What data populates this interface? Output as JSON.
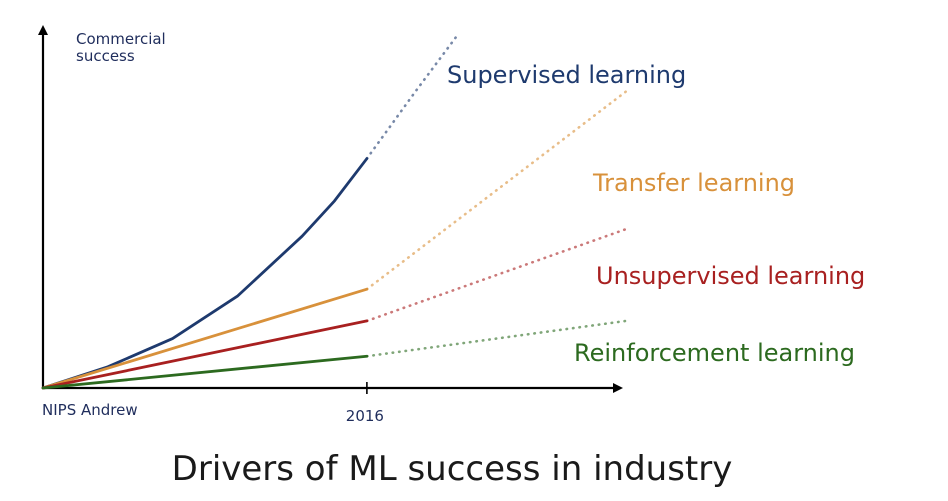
{
  "chart_data": {
    "type": "line",
    "title": "Drivers of ML success in industry",
    "ylabel_lines": [
      "Commercial",
      "success"
    ],
    "xlabel_start": "NIPS Andrew",
    "x_ticks": [
      {
        "x": 2016,
        "label": "2016"
      }
    ],
    "xlim": [
      2011,
      2020
    ],
    "ylim": [
      0,
      10
    ],
    "split_x": 2016,
    "series": [
      {
        "name": "Supervised learning",
        "color": "#1e3a6e",
        "x": [
          2011,
          2012,
          2013,
          2014,
          2015,
          2015.5,
          2016,
          2016.75,
          2017.4
        ],
        "values": [
          0,
          0.6,
          1.4,
          2.6,
          4.3,
          5.3,
          6.5,
          8.4,
          10
        ]
      },
      {
        "name": "Transfer learning",
        "color": "#d8913b",
        "x": [
          2011,
          2016,
          2020
        ],
        "values": [
          0,
          2.8,
          8.4
        ]
      },
      {
        "name": "Unsupervised learning",
        "color": "#a82020",
        "x": [
          2011,
          2016,
          2020
        ],
        "values": [
          0,
          1.9,
          4.5
        ]
      },
      {
        "name": "Reinforcement learning",
        "color": "#2c6a1f",
        "x": [
          2011,
          2016,
          2020
        ],
        "values": [
          0,
          0.9,
          1.9
        ]
      }
    ]
  }
}
